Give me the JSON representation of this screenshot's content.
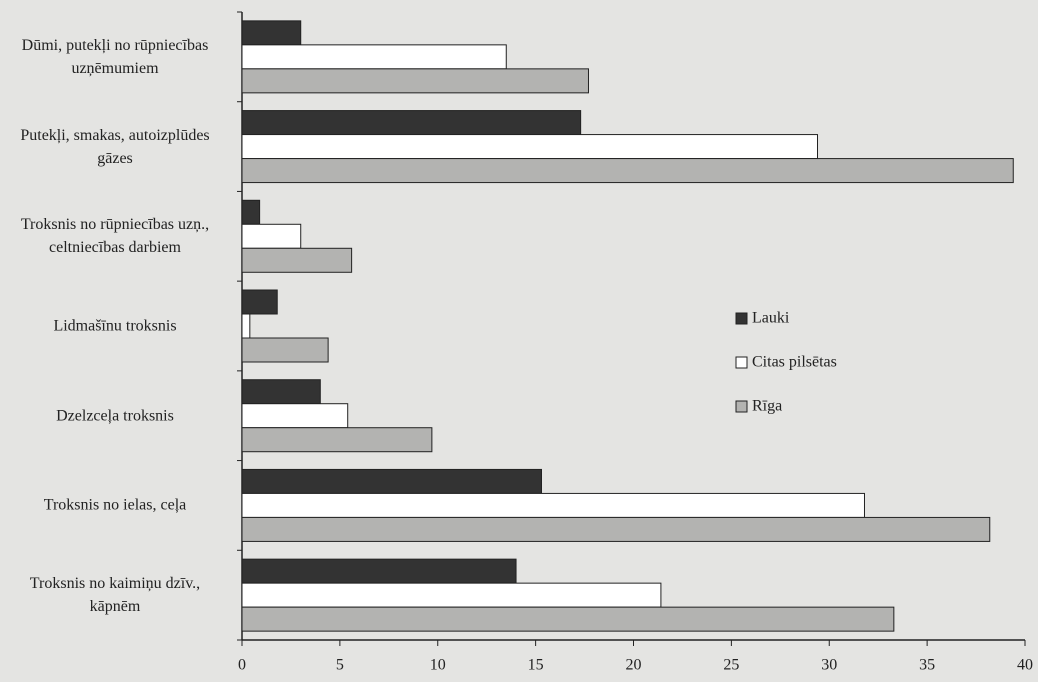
{
  "chart_data": {
    "type": "hbar",
    "categories": [
      "Dūmi, putekļi no rūpniecības\nuzņēmumiem",
      "Putekļi, smakas, autoizplūdes\ngāzes",
      "Troksnis no rūpniecības uzņ.,\nceltniecības darbiem",
      "Lidmašīnu troksnis",
      "Dzelzceļa troksnis",
      "Troksnis no ielas, ceļa",
      "Troksnis no kaimiņu dzīv.,\nkāpnēm"
    ],
    "series": [
      {
        "name": "Lauki",
        "color": "#333333",
        "values": [
          3,
          17.3,
          0.9,
          1.8,
          4,
          15.3,
          14
        ]
      },
      {
        "name": "Citas pilsētas",
        "color": "#ffffff",
        "values": [
          13.5,
          29.4,
          3,
          0.4,
          5.4,
          31.8,
          21.4
        ]
      },
      {
        "name": "Rīga",
        "color": "#b3b3b1",
        "values": [
          17.7,
          39.4,
          5.6,
          4.4,
          9.7,
          38.2,
          33.3
        ]
      }
    ],
    "xlim": [
      0,
      40
    ],
    "xticks": [
      0,
      5,
      10,
      15,
      20,
      25,
      30,
      35,
      40
    ],
    "legend": "right"
  }
}
